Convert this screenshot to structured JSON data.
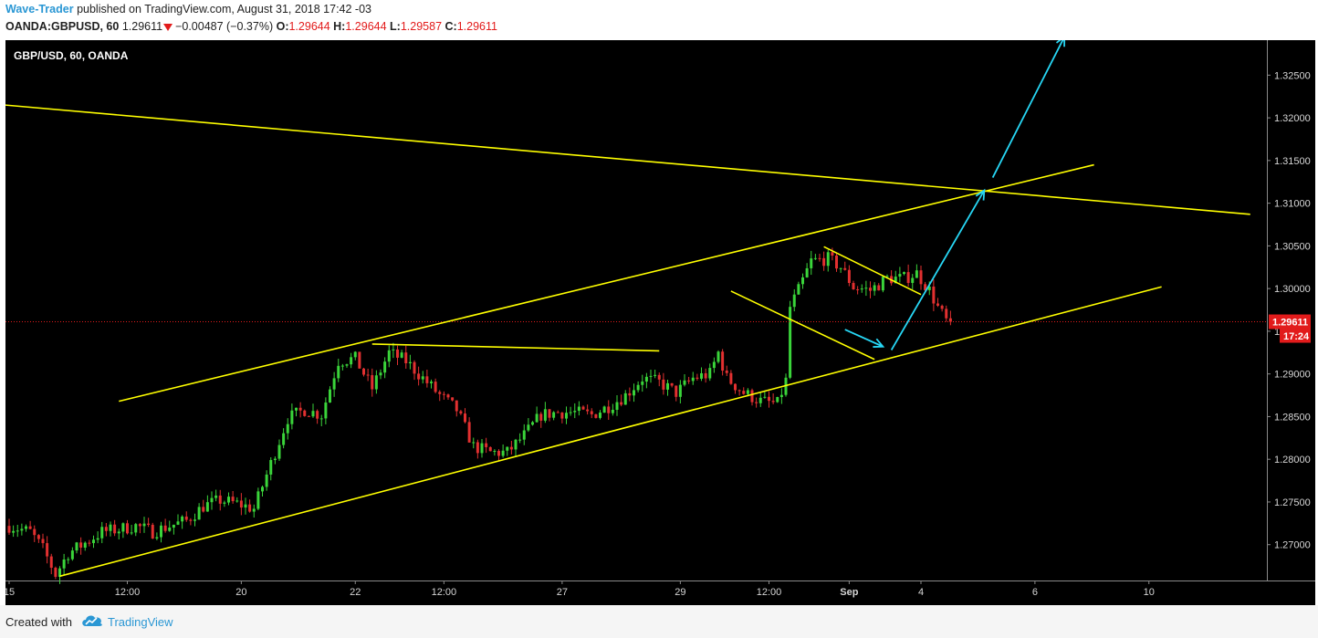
{
  "header": {
    "author": "Wave-Trader",
    "published": "published on TradingView.com, August 31, 2018 17:42 -03",
    "symbol": "OANDA:GBPUSD, 60",
    "last": "1.29611",
    "change": "−0.00487 (−0.37%)",
    "o_label": "O:",
    "o_value": "1.29644",
    "h_label": "H:",
    "h_value": "1.29644",
    "l_label": "L:",
    "l_value": "1.29587",
    "c_label": "C:",
    "c_value": "1.29611"
  },
  "footer": {
    "created": "Created with",
    "brand": "TradingView"
  },
  "colors": {
    "up": "#3ad43a",
    "down": "#e23030",
    "trendline": "#ffff00",
    "projection": "#27d7f5",
    "price_label": "#e21b1b",
    "background": "#000000"
  },
  "chart_data": {
    "type": "candlestick",
    "title": "GBP/USD, 60, OANDA",
    "timeframe": "60",
    "y_axis": {
      "ticks": [
        1.27,
        1.275,
        1.28,
        1.285,
        1.29,
        1.295,
        1.3,
        1.305,
        1.31,
        1.315,
        1.32,
        1.325
      ],
      "tick_labels": [
        "1.27000",
        "1.27500",
        "1.28000",
        "1.28500",
        "1.29000",
        "1.29500",
        "1.30000",
        "1.30500",
        "1.31000",
        "1.31500",
        "1.32000",
        "1.32500"
      ],
      "range": [
        1.2658,
        1.3291
      ],
      "position": "right"
    },
    "x_axis": {
      "tick_labels": [
        "15",
        "12:00",
        "20",
        "22",
        "12:00",
        "27",
        "29",
        "12:00",
        "Sep",
        "4",
        "6",
        "10"
      ],
      "tick_bars": [
        0,
        28,
        55,
        82,
        103,
        131,
        159,
        180,
        199,
        216,
        243,
        270
      ]
    },
    "last_price": {
      "value": 1.29611,
      "label": "1.29611",
      "countdown": "17:24"
    },
    "price_path": [
      [
        0,
        1.2722
      ],
      [
        5,
        1.2715
      ],
      [
        8,
        1.2695
      ],
      [
        11,
        1.2665
      ],
      [
        14,
        1.269
      ],
      [
        18,
        1.2702
      ],
      [
        22,
        1.2715
      ],
      [
        26,
        1.2718
      ],
      [
        30,
        1.2722
      ],
      [
        34,
        1.2715
      ],
      [
        38,
        1.2722
      ],
      [
        42,
        1.2728
      ],
      [
        46,
        1.2745
      ],
      [
        50,
        1.2752
      ],
      [
        54,
        1.2748
      ],
      [
        58,
        1.2742
      ],
      [
        62,
        1.2795
      ],
      [
        66,
        1.2848
      ],
      [
        70,
        1.2858
      ],
      [
        74,
        1.2852
      ],
      [
        78,
        1.2915
      ],
      [
        82,
        1.2918
      ],
      [
        86,
        1.2883
      ],
      [
        90,
        1.2925
      ],
      [
        94,
        1.2915
      ],
      [
        98,
        1.2895
      ],
      [
        102,
        1.2875
      ],
      [
        106,
        1.2858
      ],
      [
        110,
        1.2815
      ],
      [
        114,
        1.2808
      ],
      [
        118,
        1.2808
      ],
      [
        122,
        1.2828
      ],
      [
        126,
        1.2852
      ],
      [
        130,
        1.2855
      ],
      [
        134,
        1.2855
      ],
      [
        138,
        1.2852
      ],
      [
        142,
        1.2862
      ],
      [
        146,
        1.2875
      ],
      [
        150,
        1.2895
      ],
      [
        154,
        1.289
      ],
      [
        158,
        1.2878
      ],
      [
        162,
        1.2895
      ],
      [
        166,
        1.29
      ],
      [
        168,
        1.2925
      ],
      [
        170,
        1.2895
      ],
      [
        174,
        1.2878
      ],
      [
        178,
        1.2868
      ],
      [
        182,
        1.2865
      ],
      [
        184,
        1.2892
      ],
      [
        185,
        1.2978
      ],
      [
        187,
        1.2998
      ],
      [
        190,
        1.3032
      ],
      [
        194,
        1.3035
      ],
      [
        197,
        1.3025
      ],
      [
        200,
        1.3002
      ],
      [
        204,
        1.2998
      ],
      [
        208,
        1.3012
      ],
      [
        212,
        1.3012
      ],
      [
        215,
        1.3018
      ],
      [
        218,
        1.2998
      ],
      [
        220,
        1.2978
      ],
      [
        222,
        1.2962
      ],
      [
        223,
        1.2961
      ]
    ],
    "drawings": [
      {
        "kind": "trendline",
        "color": "yellow",
        "name": "descending resistance",
        "points": [
          [
            -1,
            1.3215
          ],
          [
            294,
            1.3087
          ]
        ]
      },
      {
        "kind": "trendline",
        "color": "yellow",
        "name": "channel top",
        "points": [
          [
            26,
            1.2868
          ],
          [
            257,
            1.3145
          ]
        ]
      },
      {
        "kind": "trendline",
        "color": "yellow",
        "name": "channel bottom",
        "points": [
          [
            12,
            1.2663
          ],
          [
            273,
            1.3002
          ]
        ]
      },
      {
        "kind": "trendline",
        "color": "yellow",
        "name": "range top",
        "points": [
          [
            86,
            1.2935
          ],
          [
            154,
            1.2927
          ]
        ]
      },
      {
        "kind": "trendline",
        "color": "yellow",
        "name": "flag top",
        "points": [
          [
            193,
            1.3049
          ],
          [
            216,
            1.2993
          ]
        ]
      },
      {
        "kind": "trendline",
        "color": "yellow",
        "name": "flag bottom",
        "points": [
          [
            171,
            1.2997
          ],
          [
            205,
            1.2917
          ]
        ]
      },
      {
        "kind": "arrow",
        "color": "cyan",
        "points": [
          [
            198,
            1.2952
          ],
          [
            207,
            1.2932
          ]
        ]
      },
      {
        "kind": "arrow",
        "color": "cyan",
        "points": [
          [
            209,
            1.2928
          ],
          [
            231,
            1.3115
          ]
        ]
      },
      {
        "kind": "arrow",
        "color": "cyan",
        "points": [
          [
            233,
            1.313
          ],
          [
            250,
            1.3295
          ]
        ]
      }
    ]
  }
}
